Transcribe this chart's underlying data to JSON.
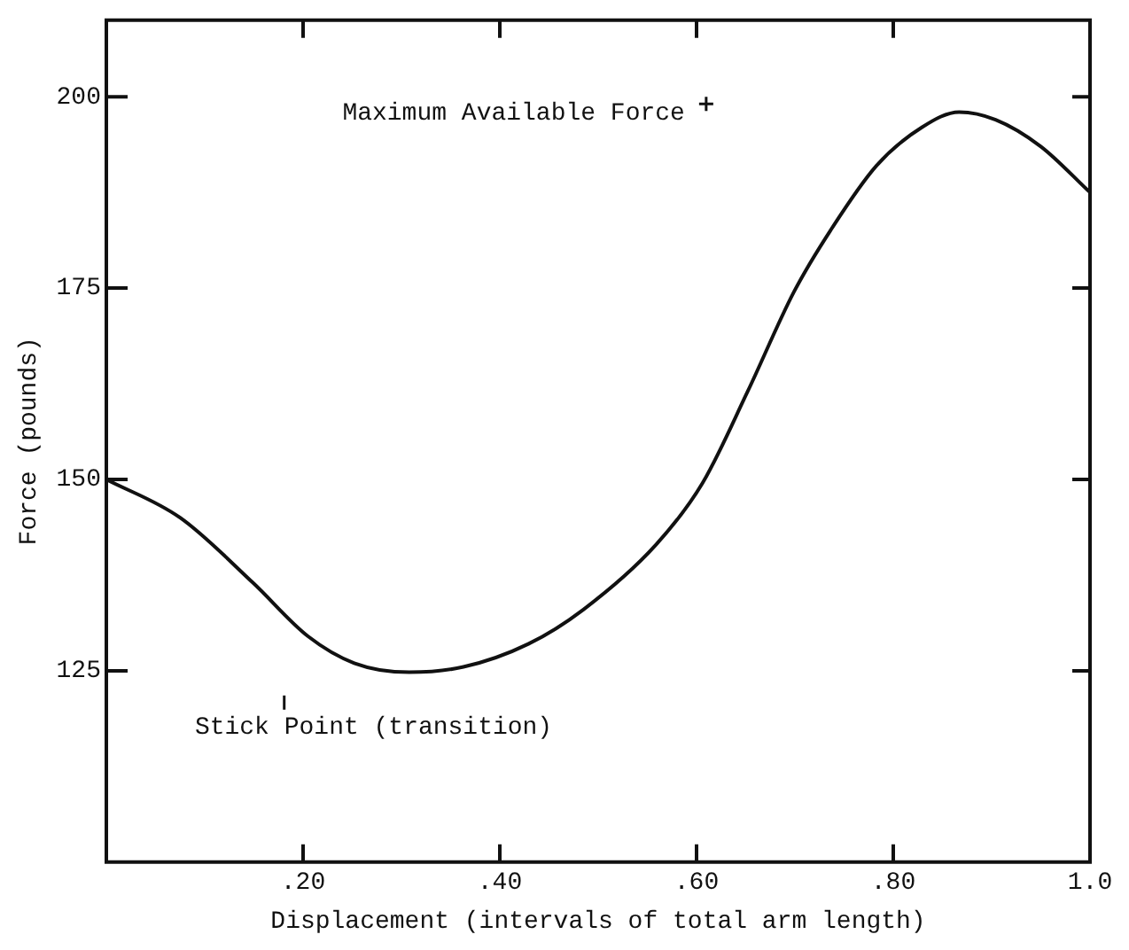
{
  "chart_data": {
    "type": "line",
    "xlabel": "Displacement (intervals of total arm length)",
    "ylabel": "Force (pounds)",
    "x": [
      0,
      0.075,
      0.149,
      0.205,
      0.252,
      0.308,
      0.363,
      0.429,
      0.485,
      0.559,
      0.606,
      0.652,
      0.699,
      0.736,
      0.783,
      0.829,
      0.867,
      0.904,
      0.95,
      1.0
    ],
    "series": [
      {
        "color": "#111111",
        "values": [
          150,
          145,
          136.5,
          129.5,
          126,
          124.8,
          125.5,
          128.5,
          133,
          141.5,
          149.5,
          161.5,
          174.5,
          182.5,
          191,
          196,
          198,
          197,
          193.5,
          187.5
        ]
      }
    ],
    "xlim": [
      0,
      1.0
    ],
    "xticks": [
      {
        "value": 0.2,
        "label": ".20"
      },
      {
        "value": 0.4,
        "label": ".40"
      },
      {
        "value": 0.6,
        "label": ".60"
      },
      {
        "value": 0.8,
        "label": ".80"
      },
      {
        "value": 1.0,
        "label": "1.0"
      }
    ],
    "ylim": [
      100,
      210
    ],
    "yticks": [
      125,
      150,
      175,
      200
    ],
    "annotations": [
      "Maximum Available Force",
      "Stick Point (transition)"
    ],
    "grid": false,
    "legend": false,
    "marker": "none",
    "line_style": "solid"
  }
}
